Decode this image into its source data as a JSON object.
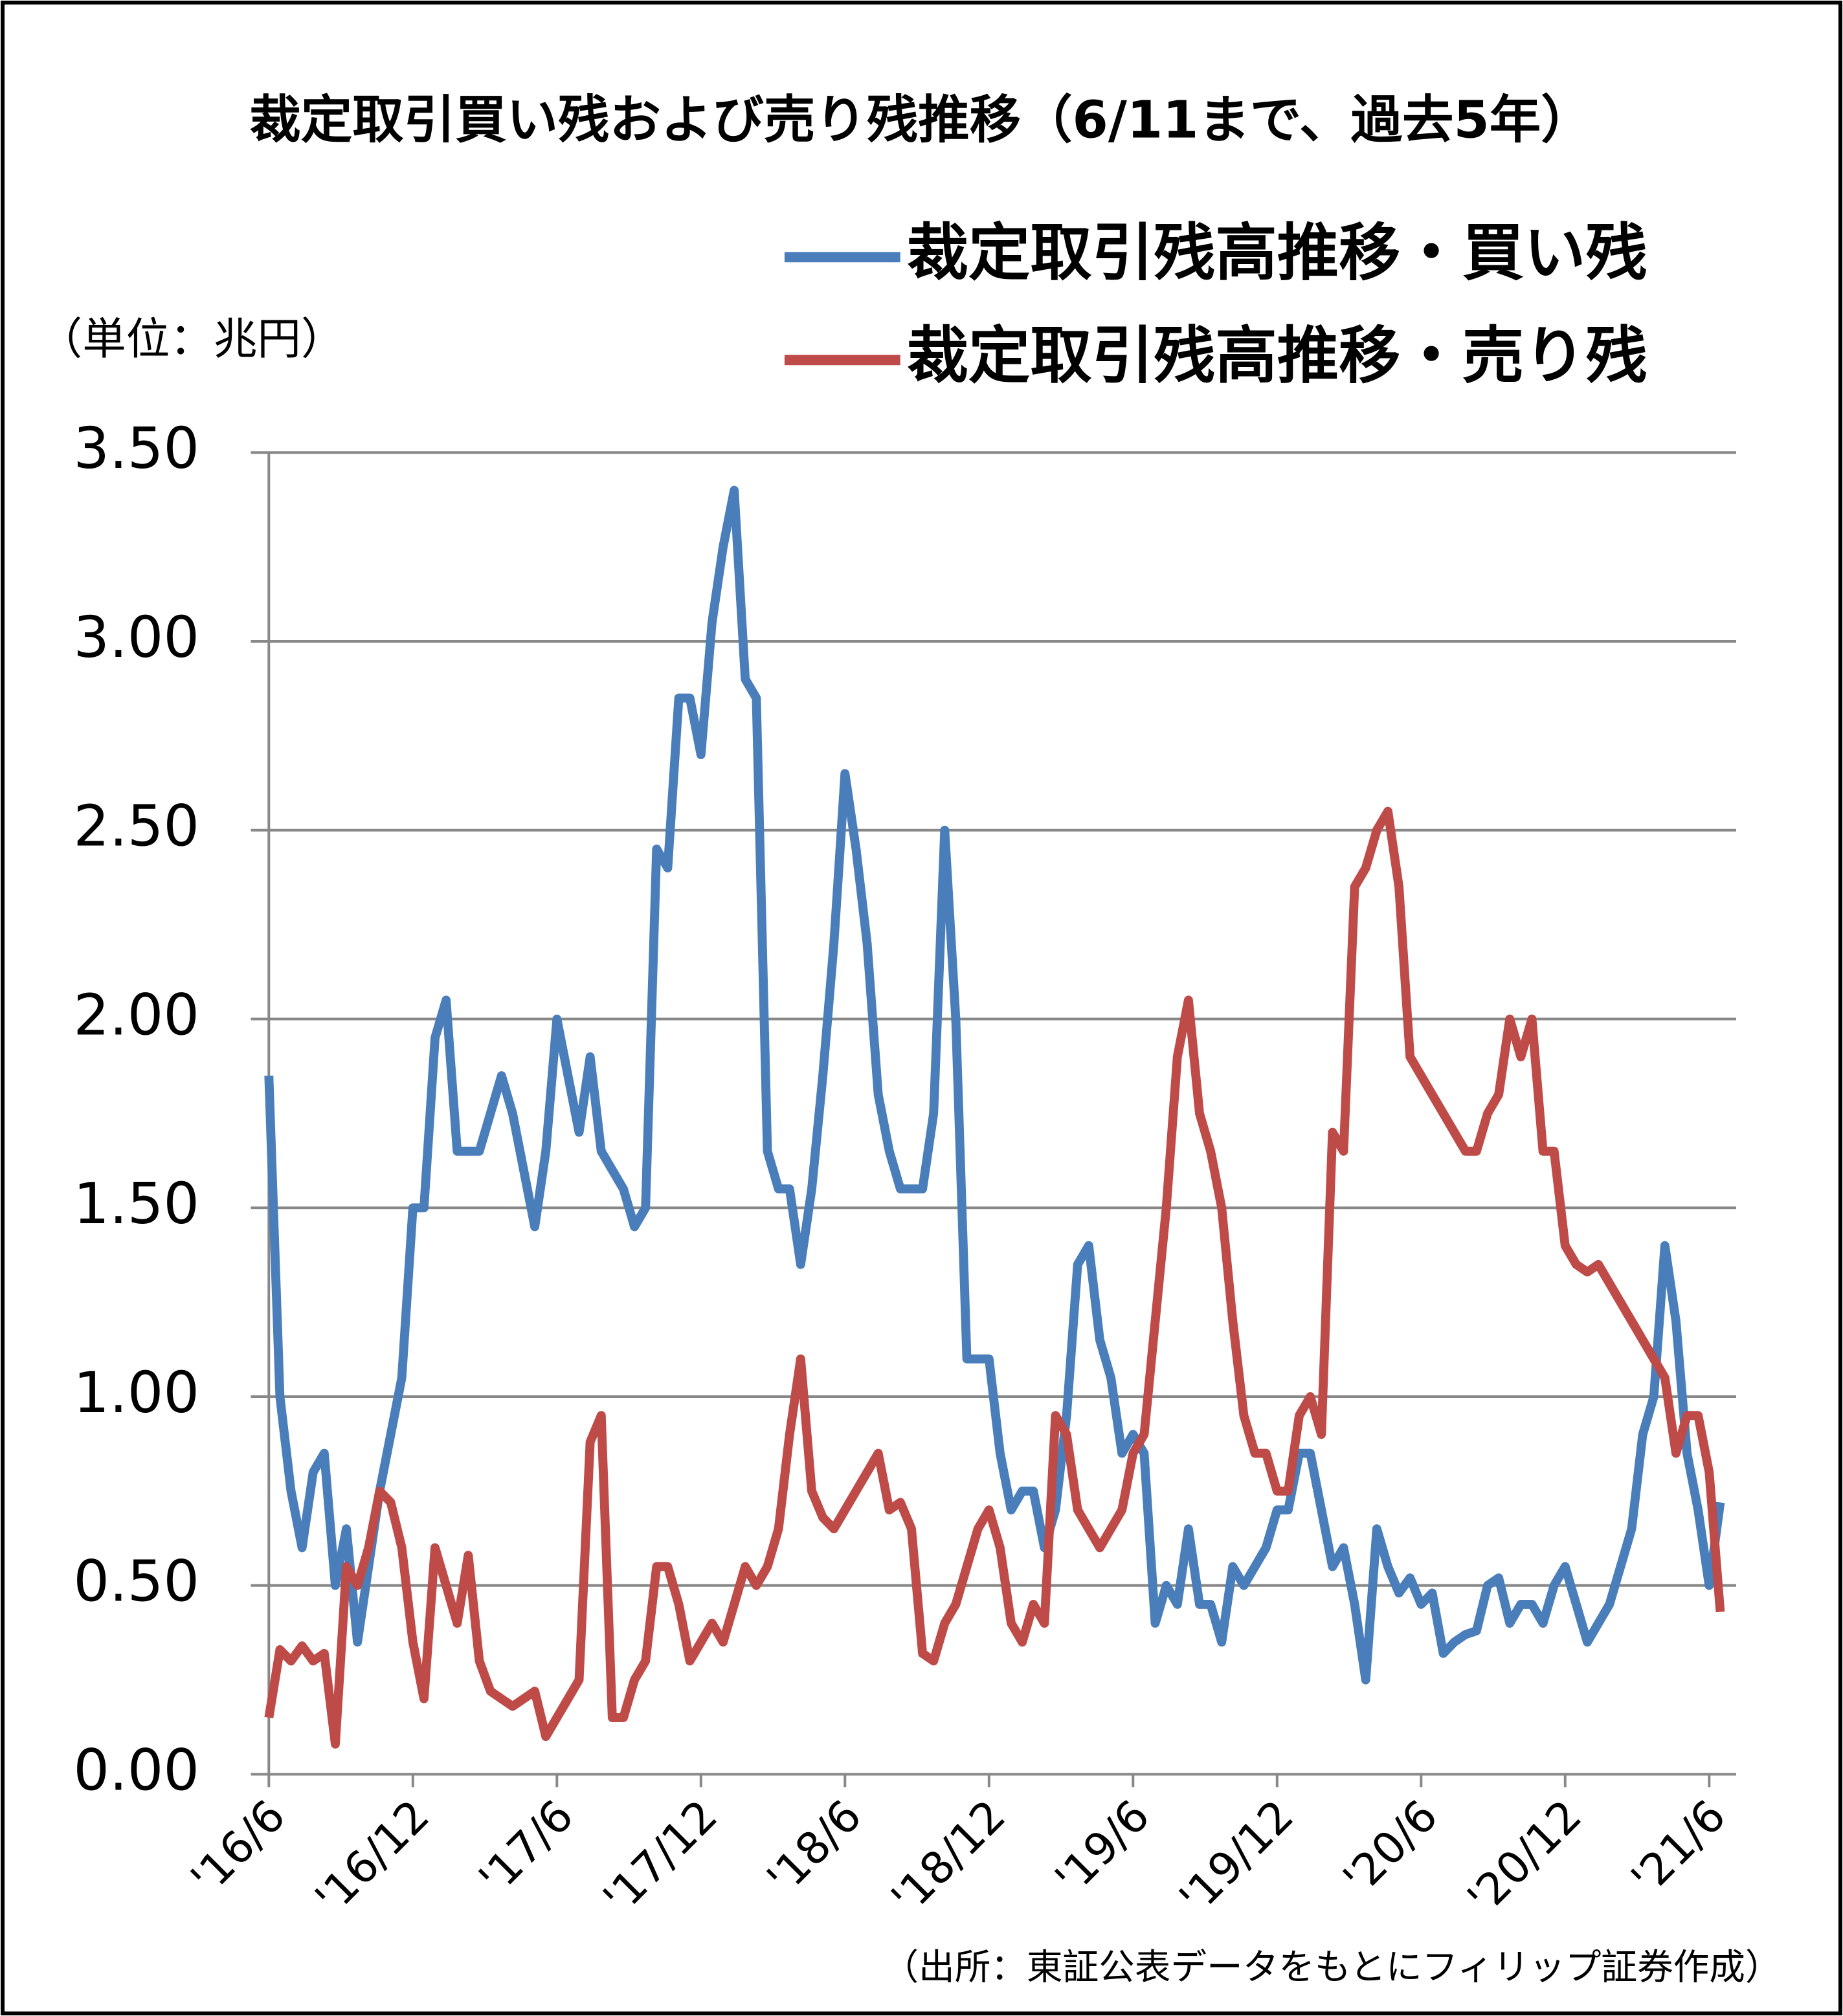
{
  "chart_data": {
    "type": "line",
    "title": "裁定取引買い残および売り残推移（6/11まで、過去5年）",
    "unit_label": "（単位：兆円）",
    "source": "（出所：東証公表データをもとにフィリップ証券作成）",
    "categories": [
      "'16/6",
      null,
      null,
      null,
      null,
      null,
      null,
      null,
      null,
      null,
      null,
      null,
      null,
      "'16/12",
      null,
      null,
      null,
      null,
      null,
      null,
      null,
      null,
      null,
      null,
      null,
      null,
      "'17/6",
      null,
      null,
      null,
      null,
      null,
      null,
      null,
      null,
      null,
      null,
      null,
      null,
      "'17/12",
      null,
      null,
      null,
      null,
      null,
      null,
      null,
      null,
      null,
      null,
      null,
      null,
      "'18/6",
      null,
      null,
      null,
      null,
      null,
      null,
      null,
      null,
      null,
      null,
      null,
      null,
      "'18/12",
      null,
      null,
      null,
      null,
      null,
      null,
      null,
      null,
      null,
      null,
      null,
      null,
      "'19/6",
      null,
      null,
      null,
      null,
      null,
      null,
      null,
      null,
      null,
      null,
      null,
      null,
      "'19/12",
      null,
      null,
      null,
      null,
      null,
      null,
      null,
      null,
      null,
      null,
      null,
      null,
      "'20/6",
      null,
      null,
      null,
      null,
      null,
      null,
      null,
      null,
      null,
      null,
      null,
      null,
      "'20/12",
      null,
      null,
      null,
      null,
      null,
      null,
      null,
      null,
      null,
      null,
      null,
      null,
      "'21/6",
      null
    ],
    "series": [
      {
        "name": "裁定取引残高推移・買い残",
        "color": "#4a7ebb",
        "values": [
          1.85,
          1.0,
          0.75,
          0.6,
          0.8,
          0.85,
          0.5,
          0.65,
          0.35,
          0.55,
          0.75,
          0.9,
          1.05,
          1.5,
          1.5,
          1.95,
          2.05,
          1.65,
          1.65,
          1.65,
          1.75,
          1.85,
          1.75,
          1.6,
          1.45,
          1.65,
          2.0,
          1.85,
          1.7,
          1.9,
          1.65,
          1.6,
          1.55,
          1.45,
          1.5,
          2.45,
          2.4,
          2.85,
          2.85,
          2.7,
          3.05,
          3.25,
          3.4,
          2.9,
          2.85,
          1.65,
          1.55,
          1.55,
          1.35,
          1.55,
          1.85,
          2.2,
          2.65,
          2.45,
          2.2,
          1.8,
          1.65,
          1.55,
          1.55,
          1.55,
          1.75,
          2.5,
          2.0,
          1.1,
          1.1,
          1.1,
          0.85,
          0.7,
          0.75,
          0.75,
          0.6,
          0.7,
          0.95,
          1.35,
          1.4,
          1.15,
          1.05,
          0.85,
          0.9,
          0.85,
          0.4,
          0.5,
          0.45,
          0.65,
          0.45,
          0.45,
          0.35,
          0.55,
          0.5,
          0.55,
          0.6,
          0.7,
          0.7,
          0.85,
          0.85,
          0.7,
          0.55,
          0.6,
          0.45,
          0.25,
          0.65,
          0.55,
          0.48,
          0.52,
          0.45,
          0.48,
          0.32,
          0.35,
          0.37,
          0.38,
          0.5,
          0.52,
          0.4,
          0.45,
          0.45,
          0.4,
          0.5,
          0.55,
          0.45,
          0.35,
          0.4,
          0.45,
          0.55,
          0.65,
          0.9,
          1.0,
          1.4,
          1.2,
          0.85,
          0.7,
          0.5,
          0.72
        ]
      },
      {
        "name": "裁定取引残高推移・売り残",
        "color": "#be4b48",
        "values": [
          0.15,
          0.33,
          0.3,
          0.34,
          0.3,
          0.32,
          0.08,
          0.55,
          0.5,
          0.6,
          0.75,
          0.72,
          0.6,
          0.35,
          0.2,
          0.6,
          0.5,
          0.4,
          0.58,
          0.3,
          0.22,
          0.2,
          0.18,
          0.2,
          0.22,
          0.1,
          0.15,
          0.2,
          0.25,
          0.88,
          0.95,
          0.15,
          0.15,
          0.25,
          0.3,
          0.55,
          0.55,
          0.45,
          0.3,
          0.35,
          0.4,
          0.35,
          0.45,
          0.55,
          0.5,
          0.55,
          0.65,
          0.9,
          1.1,
          0.75,
          0.68,
          0.65,
          0.7,
          0.75,
          0.8,
          0.85,
          0.7,
          0.72,
          0.65,
          0.32,
          0.3,
          0.4,
          0.45,
          0.55,
          0.65,
          0.7,
          0.6,
          0.4,
          0.35,
          0.45,
          0.4,
          0.95,
          0.9,
          0.7,
          0.65,
          0.6,
          0.65,
          0.7,
          0.85,
          0.9,
          1.2,
          1.5,
          1.9,
          2.05,
          1.75,
          1.65,
          1.5,
          1.2,
          0.95,
          0.85,
          0.85,
          0.75,
          0.75,
          0.95,
          1.0,
          0.9,
          1.7,
          1.65,
          2.35,
          2.4,
          2.5,
          2.55,
          2.35,
          1.9,
          1.85,
          1.8,
          1.75,
          1.7,
          1.65,
          1.65,
          1.75,
          1.8,
          2.0,
          1.9,
          2.0,
          1.65,
          1.65,
          1.4,
          1.35,
          1.33,
          1.35,
          1.3,
          1.25,
          1.2,
          1.15,
          1.1,
          1.05,
          0.85,
          0.95,
          0.95,
          0.8,
          0.43
        ]
      }
    ],
    "ylim": [
      0,
      3.5
    ],
    "yticks": [
      {
        "value": 0,
        "label": "0.00"
      },
      {
        "value": 0.5,
        "label": "0.50"
      },
      {
        "value": 1,
        "label": "1.00"
      },
      {
        "value": 1.5,
        "label": "1.50"
      },
      {
        "value": 2,
        "label": "2.00"
      },
      {
        "value": 2.5,
        "label": "2.50"
      },
      {
        "value": 3,
        "label": "3.00"
      },
      {
        "value": 3.5,
        "label": "3.50"
      }
    ],
    "grid": true,
    "legend": "top-right"
  }
}
